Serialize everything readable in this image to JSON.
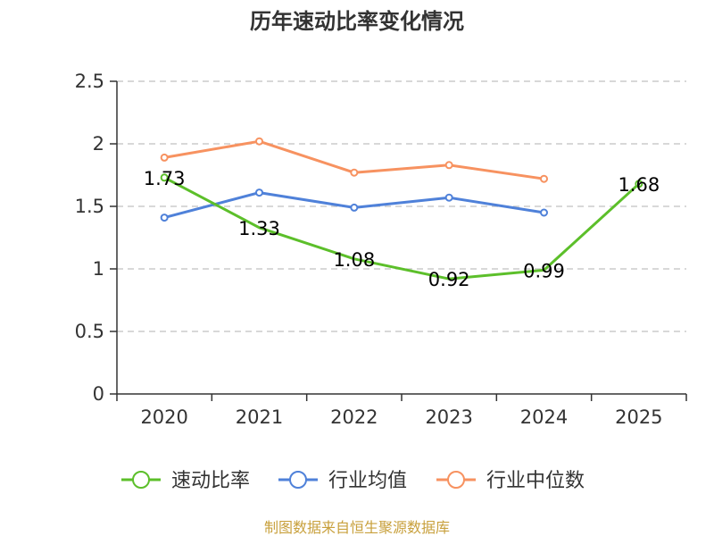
{
  "chart_data": {
    "type": "line",
    "title": "历年速动比率变化情况",
    "categories": [
      "2020",
      "2021",
      "2022",
      "2023",
      "2024",
      "2025"
    ],
    "y_ticks": [
      "0",
      "0.5",
      "1",
      "1.5",
      "2",
      "2.5"
    ],
    "ylim": [
      0,
      2.5
    ],
    "grid": true,
    "legend_position": "bottom",
    "series": [
      {
        "name": "速动比率",
        "color": "#5cbf2a",
        "values": [
          1.73,
          1.33,
          1.08,
          0.92,
          0.99,
          1.68
        ],
        "labels": [
          "1.73",
          "1.33",
          "1.08",
          "0.92",
          "0.99",
          "1.68"
        ],
        "markers": [
          true,
          false,
          false,
          false,
          false,
          true
        ]
      },
      {
        "name": "行业均值",
        "color": "#4f81d9",
        "values": [
          1.41,
          1.61,
          1.49,
          1.57,
          1.45,
          null
        ]
      },
      {
        "name": "行业中位数",
        "color": "#f79260",
        "values": [
          1.89,
          2.02,
          1.77,
          1.83,
          1.72,
          null
        ]
      }
    ],
    "source": "制图数据来自恒生聚源数据库"
  }
}
